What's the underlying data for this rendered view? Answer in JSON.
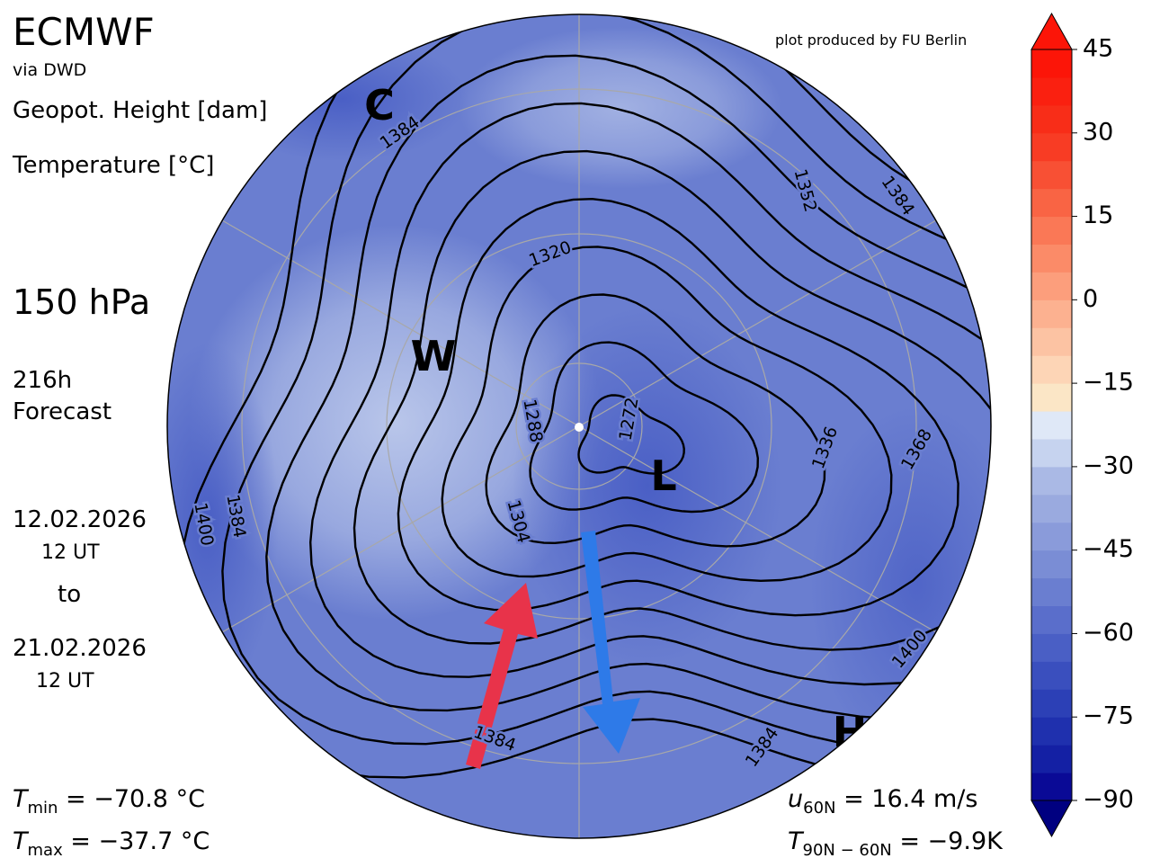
{
  "header": {
    "title": "ECMWF",
    "source": "via DWD",
    "field1": "Geopot. Height [dam]",
    "field2": "Temperature [°C]",
    "level": "150 hPa",
    "lead": "216h",
    "lead_note": "Forecast",
    "date_from": "12.02.2026",
    "time_from": "12 UT",
    "to": "to",
    "date_to": "21.02.2026",
    "time_to": "12 UT",
    "credit": "plot produced by FU Berlin"
  },
  "map": {
    "contour_labels": [
      "1384",
      "1320",
      "1352",
      "1384",
      "1288",
      "1272",
      "1304",
      "1336",
      "1368",
      "1400",
      "1384",
      "1400",
      "1384",
      "1384"
    ],
    "markers": [
      "C",
      "W",
      "L",
      "H"
    ]
  },
  "stats": [
    {
      "symbol": "T",
      "sub": "min",
      "text": " =  −70.8 °C"
    },
    {
      "symbol": "T",
      "sub": "max",
      "text": " =  −37.7 °C"
    },
    {
      "symbol": "u",
      "sub": "60N",
      "text": " = 16.4 m/s"
    },
    {
      "symbol": "T",
      "sub": "90N − 60N",
      "text": " = −9.9K"
    }
  ],
  "colorbar": {
    "range": [
      -90,
      45
    ],
    "step": 5,
    "ticks": [
      {
        "value": -90,
        "label": "−90"
      },
      {
        "value": -75,
        "label": "−75"
      },
      {
        "value": -60,
        "label": "−60"
      },
      {
        "value": -45,
        "label": "−45"
      },
      {
        "value": -30,
        "label": "−30"
      },
      {
        "value": -15,
        "label": "−15"
      },
      0,
      15,
      30,
      45
    ],
    "colors": [
      "#0a0a96",
      "#1420a4",
      "#1f30ae",
      "#2c40b6",
      "#3a4fbe",
      "#4a5fc5",
      "#5a6ecb",
      "#6a7ed0",
      "#7a8dd5",
      "#8a9bda",
      "#9aaadf",
      "#aab9e5",
      "#c6d3ef",
      "#dfe8f7",
      "#fbe6c6",
      "#fdd5b6",
      "#fcc3a3",
      "#fcb190",
      "#fc9e7c",
      "#fb8b68",
      "#fa7856",
      "#f96444",
      "#f85034",
      "#f83c24",
      "#f82d18",
      "#fa2010",
      "#fc1508"
    ]
  }
}
